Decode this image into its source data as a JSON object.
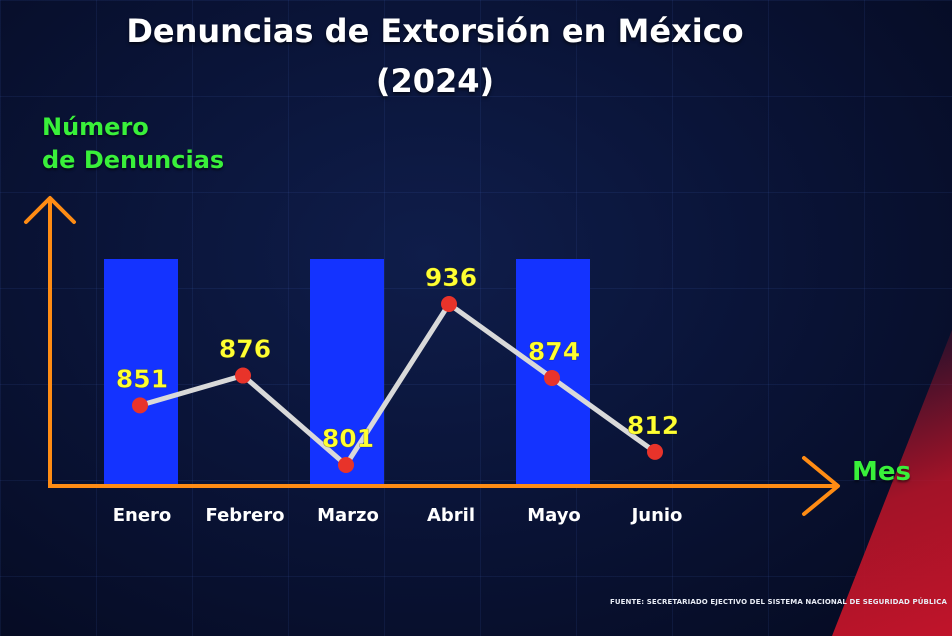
{
  "title_line1": "Denuncias de Extorsión en México",
  "title_line2": "(2024)",
  "y_axis_label_line1": "Número",
  "y_axis_label_line2": "de Denuncias",
  "x_axis_label": "Mes",
  "source": "FUENTE: SECRETARIADO EJECTIVO DEL SISTEMA NACIONAL DE SEGURIDAD PÚBLICA",
  "colors": {
    "axis": "#ff8c14",
    "bar": "#1433ff",
    "line": "#d9d9d9",
    "point": "#e8332a",
    "value_label": "#ffff33",
    "axis_title": "#39f03a"
  },
  "chart_data": {
    "type": "line",
    "title": "Denuncias de Extorsión en México (2024)",
    "xlabel": "Mes",
    "ylabel": "Número de Denuncias",
    "categories": [
      "Enero",
      "Febrero",
      "Marzo",
      "Abril",
      "Mayo",
      "Junio"
    ],
    "values": [
      851,
      876,
      801,
      936,
      874,
      812
    ],
    "ylim": [
      780,
      950
    ],
    "highlighted_categories": [
      "Enero",
      "Marzo",
      "Mayo"
    ],
    "grid": false,
    "legend": "none"
  }
}
